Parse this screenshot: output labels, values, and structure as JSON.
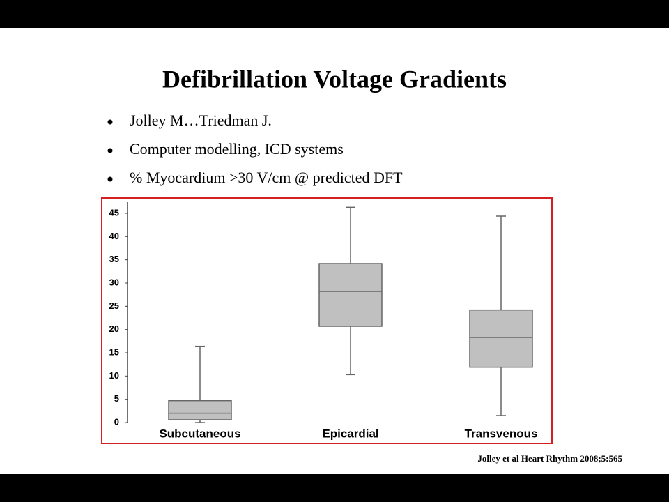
{
  "slide": {
    "title": "Defibrillation Voltage Gradients",
    "bullets": [
      "Jolley M…Triedman J.",
      "Computer modelling, ICD systems",
      "% Myocardium >30 V/cm @ predicted DFT"
    ],
    "citation": "Jolley et al Heart Rhythm 2008;5:565"
  },
  "chart_data": {
    "type": "box",
    "categories": [
      "Subcutaneous",
      "Epicardial",
      "Transvenous"
    ],
    "boxes": [
      {
        "min": 0,
        "q1": 0.6,
        "median": 2,
        "q3": 4.7,
        "max": 16.4
      },
      {
        "min": 10.3,
        "q1": 20.7,
        "median": 28.2,
        "q3": 34.2,
        "max": 46.3
      },
      {
        "min": 1.5,
        "q1": 11.9,
        "median": 18.3,
        "q3": 24.2,
        "max": 44.4
      }
    ],
    "color": "#c0c0c0",
    "ylim": [
      0,
      47.5
    ],
    "yticks": [
      0,
      5,
      10,
      15,
      20,
      25,
      30,
      35,
      40,
      45
    ],
    "grid": false
  }
}
